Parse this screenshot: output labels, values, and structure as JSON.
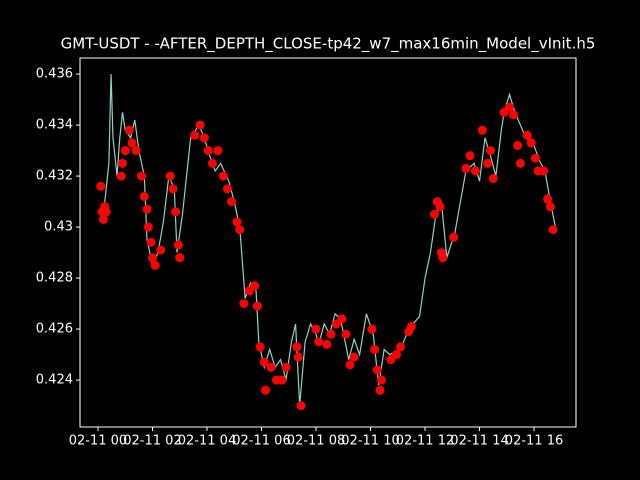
{
  "chart_data": {
    "type": "line",
    "title": "GMT-USDT - -AFTER_DEPTH_CLOSE-tp42_w7_max16min_Model_vInit.h5",
    "xlim": [
      -0.66,
      17.54
    ],
    "xticks": [
      {
        "value": 0,
        "label": "02-11 00"
      },
      {
        "value": 2,
        "label": "02-11 02"
      },
      {
        "value": 4,
        "label": "02-11 04"
      },
      {
        "value": 6,
        "label": "02-11 06"
      },
      {
        "value": 8,
        "label": "02-11 08"
      },
      {
        "value": 10,
        "label": "02-11 10"
      },
      {
        "value": 12,
        "label": "02-11 12"
      },
      {
        "value": 14,
        "label": "02-11 14"
      },
      {
        "value": 16,
        "label": "02-11 16"
      }
    ],
    "ylim": [
      0.42216,
      0.43663
    ],
    "yticks": [
      0.424,
      0.426,
      0.428,
      0.43,
      0.432,
      0.434,
      0.436
    ],
    "series": [
      {
        "style": "line",
        "color": "#8dd3c7",
        "x": [
          0.1,
          0.25,
          0.4,
          0.48,
          0.55,
          0.7,
          0.8,
          0.9,
          1.0,
          1.2,
          1.35,
          1.5,
          1.7,
          1.8,
          2.0,
          2.2,
          2.4,
          2.6,
          2.8,
          2.9,
          3.1,
          3.4,
          3.7,
          3.9,
          4.1,
          4.3,
          4.5,
          4.8,
          5.0,
          5.2,
          5.4,
          5.6,
          5.8,
          5.9,
          6.1,
          6.3,
          6.5,
          6.7,
          6.9,
          7.1,
          7.25,
          7.4,
          7.6,
          7.8,
          8.0,
          8.1,
          8.3,
          8.5,
          8.7,
          8.9,
          9.2,
          9.4,
          9.6,
          9.85,
          10.1,
          10.3,
          10.5,
          10.7,
          11.1,
          11.4,
          11.8,
          12.0,
          12.2,
          12.4,
          12.6,
          12.8,
          13.1,
          13.3,
          13.5,
          13.8,
          14.0,
          14.2,
          14.4,
          14.6,
          14.8,
          14.9,
          15.1,
          15.3,
          15.5,
          15.7,
          16.0,
          16.2,
          16.4,
          16.6,
          16.8
        ],
        "values": [
          0.4305,
          0.431,
          0.4325,
          0.436,
          0.4335,
          0.432,
          0.4335,
          0.4345,
          0.4338,
          0.4335,
          0.4342,
          0.433,
          0.432,
          0.4295,
          0.4285,
          0.429,
          0.4302,
          0.432,
          0.4315,
          0.429,
          0.4305,
          0.4335,
          0.434,
          0.4335,
          0.4328,
          0.4322,
          0.4325,
          0.4318,
          0.431,
          0.43,
          0.4272,
          0.4278,
          0.4275,
          0.4255,
          0.4245,
          0.4252,
          0.4245,
          0.4248,
          0.424,
          0.4255,
          0.4262,
          0.423,
          0.4255,
          0.4262,
          0.4258,
          0.4254,
          0.4262,
          0.4258,
          0.4266,
          0.4264,
          0.4248,
          0.4256,
          0.425,
          0.4266,
          0.4258,
          0.4238,
          0.4252,
          0.425,
          0.4252,
          0.426,
          0.4265,
          0.428,
          0.429,
          0.4305,
          0.431,
          0.4288,
          0.4298,
          0.431,
          0.4322,
          0.4325,
          0.4318,
          0.4335,
          0.4328,
          0.432,
          0.4338,
          0.4345,
          0.4352,
          0.4345,
          0.434,
          0.4335,
          0.4332,
          0.4326,
          0.4322,
          0.431,
          0.4299
        ]
      },
      {
        "style": "scatter",
        "color": "#ff0000",
        "x": [
          0.1,
          0.15,
          0.2,
          0.25,
          0.3,
          0.85,
          0.9,
          1.0,
          1.15,
          1.25,
          1.4,
          1.6,
          1.7,
          1.8,
          1.85,
          1.95,
          2.0,
          2.1,
          2.3,
          2.65,
          2.75,
          2.85,
          2.95,
          3.0,
          3.55,
          3.75,
          3.9,
          4.05,
          4.2,
          4.4,
          4.6,
          4.75,
          4.9,
          5.1,
          5.2,
          5.35,
          5.55,
          5.75,
          5.85,
          5.95,
          6.1,
          6.15,
          6.35,
          6.55,
          6.75,
          6.9,
          7.3,
          7.35,
          7.45,
          8.0,
          8.1,
          8.4,
          8.55,
          8.75,
          8.95,
          9.1,
          9.25,
          9.4,
          10.05,
          10.15,
          10.25,
          10.35,
          10.4,
          10.75,
          10.95,
          11.1,
          11.4,
          11.5,
          12.35,
          12.45,
          12.55,
          12.6,
          12.65,
          13.05,
          13.5,
          13.65,
          13.85,
          14.1,
          14.3,
          14.4,
          14.5,
          14.9,
          15.1,
          15.25,
          15.4,
          15.5,
          15.75,
          15.9,
          16.05,
          16.15,
          16.35,
          16.5,
          16.6,
          16.7
        ],
        "values": [
          0.4316,
          0.4306,
          0.4303,
          0.4308,
          0.4306,
          0.432,
          0.4325,
          0.433,
          0.4338,
          0.4333,
          0.433,
          0.432,
          0.4312,
          0.4307,
          0.43,
          0.4294,
          0.4288,
          0.4285,
          0.4291,
          0.432,
          0.4315,
          0.4306,
          0.4293,
          0.4288,
          0.4336,
          0.434,
          0.4335,
          0.433,
          0.4325,
          0.433,
          0.432,
          0.4315,
          0.431,
          0.4302,
          0.4299,
          0.427,
          0.4275,
          0.4277,
          0.4269,
          0.4253,
          0.4247,
          0.4236,
          0.4245,
          0.424,
          0.424,
          0.4245,
          0.4253,
          0.4249,
          0.423,
          0.426,
          0.4255,
          0.4254,
          0.4258,
          0.4262,
          0.4264,
          0.4258,
          0.4246,
          0.4249,
          0.426,
          0.4252,
          0.4244,
          0.4236,
          0.424,
          0.4248,
          0.425,
          0.4253,
          0.4259,
          0.4261,
          0.4305,
          0.431,
          0.4308,
          0.429,
          0.4288,
          0.4296,
          0.4323,
          0.4328,
          0.4322,
          0.4338,
          0.4325,
          0.433,
          0.4319,
          0.4345,
          0.4347,
          0.4344,
          0.4332,
          0.4325,
          0.4336,
          0.4333,
          0.4327,
          0.4322,
          0.4322,
          0.4311,
          0.4308,
          0.4299
        ]
      }
    ]
  }
}
